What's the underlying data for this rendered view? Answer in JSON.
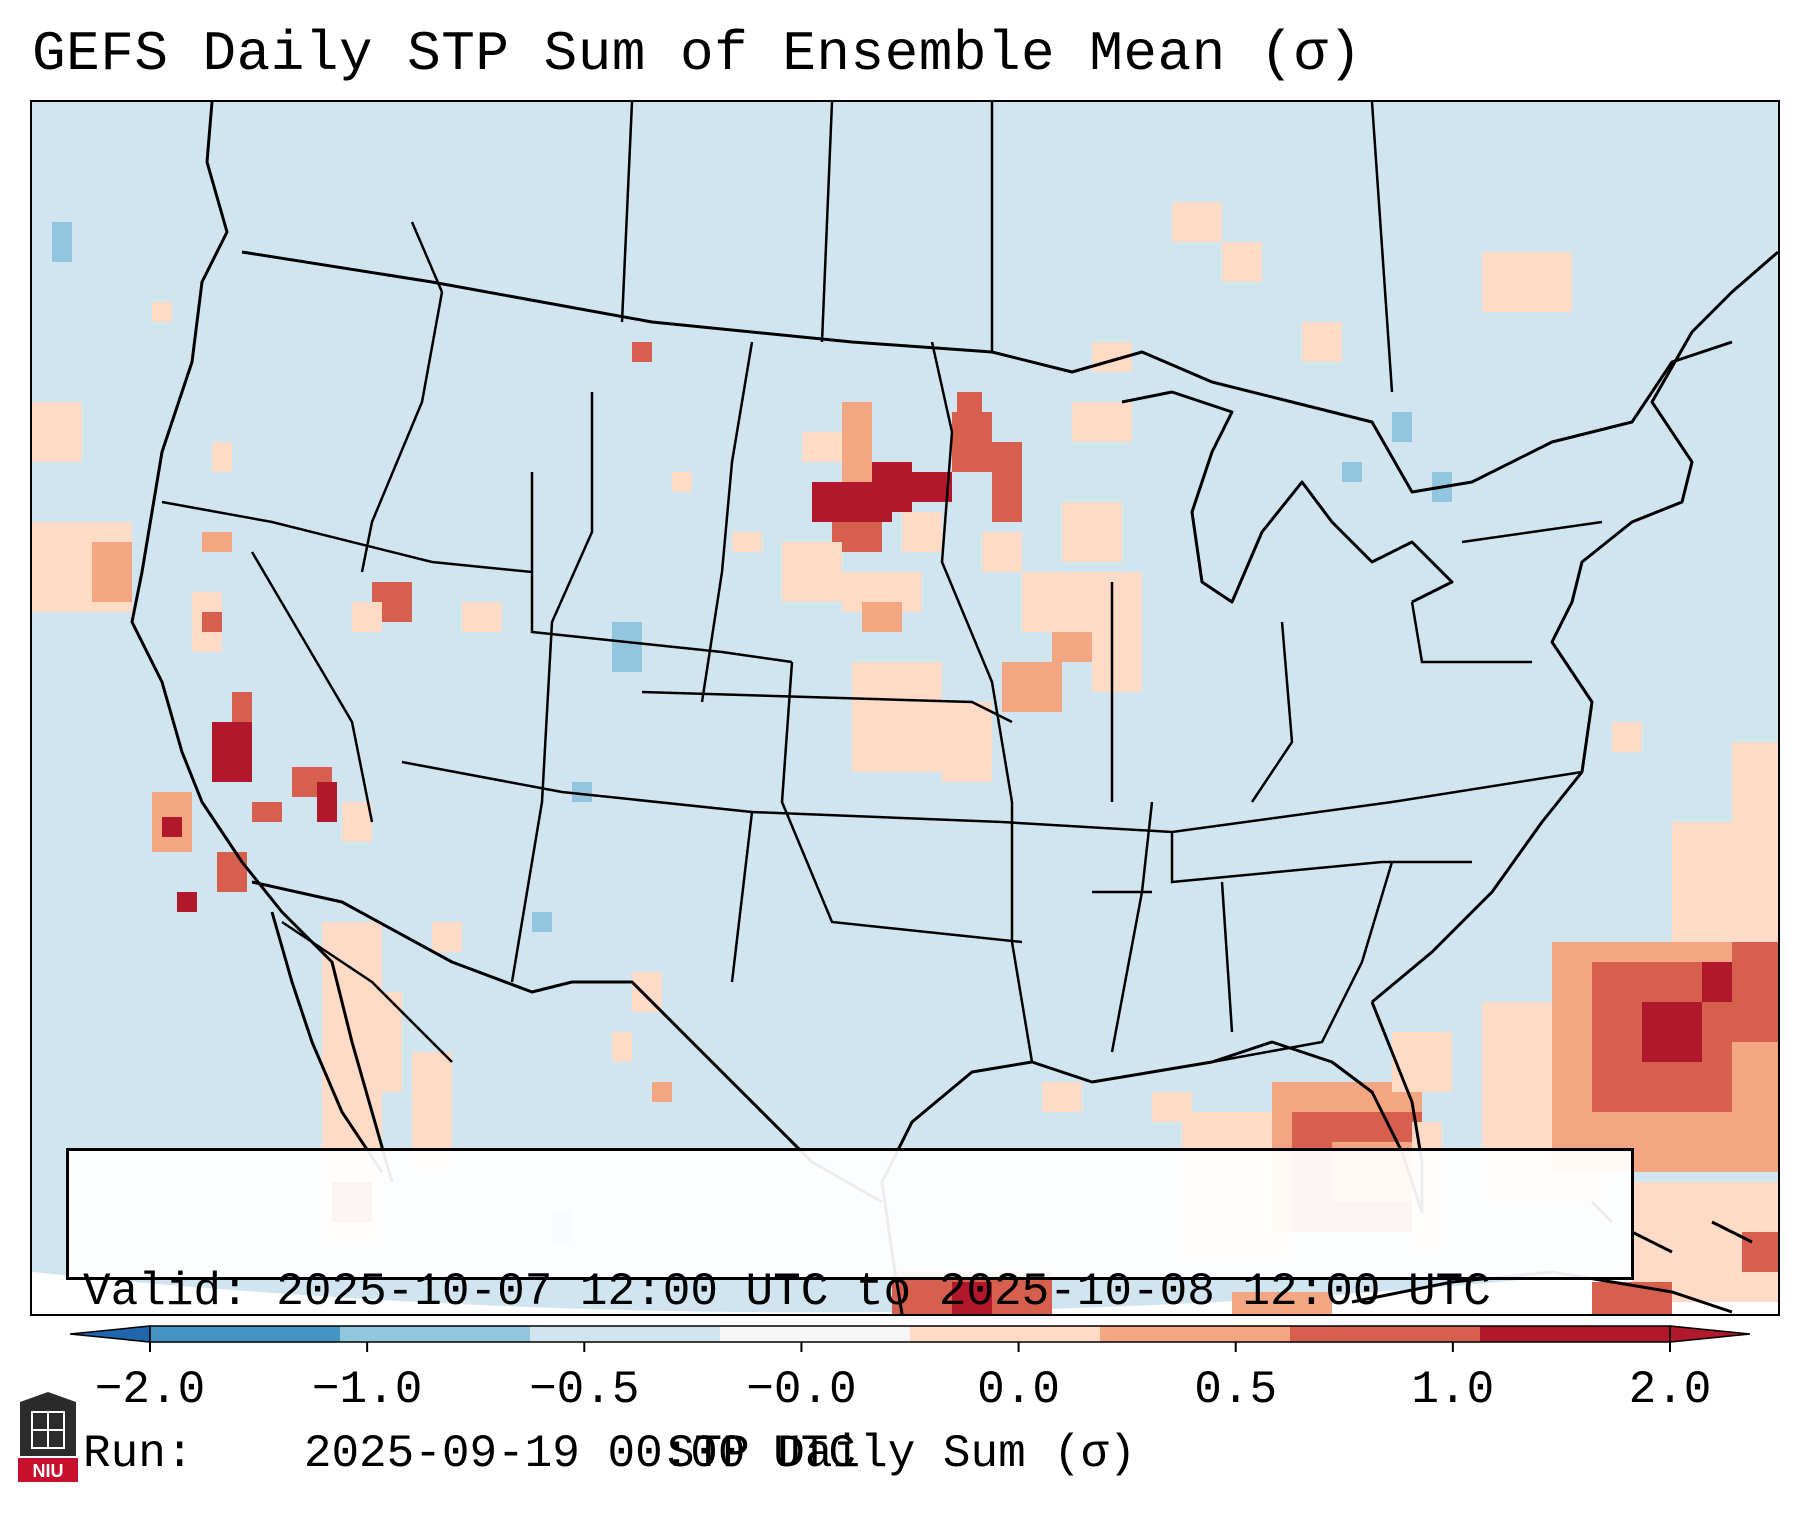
{
  "title": "GEFS Daily STP Sum of Ensemble Mean (σ)",
  "info": {
    "valid_label": "Valid:",
    "valid_value": "2025-10-07 12:00 UTC to 2025-10-08 12:00 UTC",
    "run_label": "Run:",
    "run_value": "2025-09-19 00:00 UTC"
  },
  "colorbar": {
    "label": "STP Daily Sum (σ)",
    "ticks": [
      "−2.0",
      "−1.0",
      "−0.5",
      "−0.0",
      "0.0",
      "0.5",
      "1.0",
      "2.0"
    ],
    "colors": [
      "#4393c3",
      "#92c5de",
      "#d1e5f0",
      "#f7f7f7",
      "#fddbc7",
      "#f4a582",
      "#d6604d",
      "#b2182b"
    ],
    "extend_low_color": "#2166ac",
    "extend_high_color": "#b2182b"
  },
  "map": {
    "background_color": "#d1e5f0",
    "outline_color": "#000000",
    "region": "Continental United States"
  },
  "logo": {
    "text": "NIU",
    "color": "#c8102e"
  }
}
